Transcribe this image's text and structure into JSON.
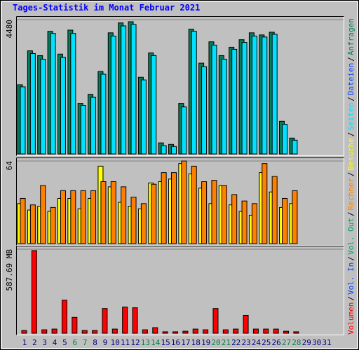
{
  "chart_data": [
    {
      "type": "bar",
      "title": "Tages-Statistik im Monat Februar 2021",
      "series": [
        {
          "name": "Anfragen",
          "color": "#00805c",
          "values": [
            2310,
            3440,
            3280,
            4090,
            3330,
            4130,
            1690,
            1990,
            2750,
            4040,
            4370,
            4410,
            2560,
            3370,
            370,
            320,
            1690,
            4160,
            3030,
            3740,
            3280,
            3560,
            3810,
            4040,
            3970,
            4060,
            1090,
            530,
            null,
            null,
            null
          ]
        },
        {
          "name": "Seiten",
          "color": "#00e0ff",
          "values": [
            2240,
            3350,
            3160,
            4020,
            3220,
            4020,
            1620,
            1890,
            2660,
            3930,
            4270,
            4320,
            2470,
            3280,
            280,
            250,
            1570,
            4090,
            2910,
            3630,
            3160,
            3490,
            3720,
            3930,
            3900,
            3990,
            990,
            460,
            null,
            null,
            null
          ]
        }
      ],
      "extra_legend": [
        {
          "name": "Dateien",
          "color": "#0040ff"
        }
      ],
      "ylim": [
        0,
        4480
      ],
      "yticks": [
        4480
      ]
    },
    {
      "type": "bar",
      "series": [
        {
          "name": "Besuche",
          "color": "#ffff00",
          "values": [
            31,
            26,
            29,
            25,
            35,
            35,
            27,
            35,
            60,
            44,
            32,
            29,
            27,
            47,
            48,
            50,
            62,
            54,
            43,
            31,
            45,
            30,
            25,
            22,
            55,
            40,
            28,
            31,
            null,
            null,
            null
          ]
        },
        {
          "name": "Rechner",
          "color": "#ff8000",
          "values": [
            35,
            30,
            45,
            28,
            41,
            41,
            41,
            41,
            48,
            48,
            44,
            36,
            31,
            46,
            55,
            55,
            64,
            60,
            48,
            49,
            45,
            38,
            33,
            31,
            62,
            52,
            35,
            41,
            null,
            null,
            null
          ]
        }
      ],
      "ylim": [
        0,
        64
      ],
      "yticks": [
        64
      ]
    },
    {
      "type": "bar",
      "categories": [
        "1",
        "2",
        "3",
        "4",
        "5",
        "6",
        "7",
        "8",
        "9",
        "10",
        "11",
        "12",
        "13",
        "14",
        "15",
        "16",
        "17",
        "18",
        "19",
        "20",
        "21",
        "22",
        "23",
        "24",
        "25",
        "26",
        "27",
        "28",
        "29",
        "30",
        "31"
      ],
      "category_colors": [
        "#000080",
        "#000080",
        "#000080",
        "#000080",
        "#000080",
        "#008040",
        "#008040",
        "#000080",
        "#000080",
        "#000080",
        "#000080",
        "#000080",
        "#008040",
        "#008040",
        "#000080",
        "#000080",
        "#000080",
        "#000080",
        "#000080",
        "#008040",
        "#008040",
        "#000080",
        "#000080",
        "#000080",
        "#000080",
        "#000080",
        "#008040",
        "#008040",
        "#000080",
        "#000080",
        "#000080"
      ],
      "series": [
        {
          "name": "Volumen",
          "color": "#ff0000",
          "values": [
            19,
            578,
            24,
            29,
            231,
            111,
            19,
            19,
            173,
            29,
            183,
            178,
            24,
            39,
            10,
            10,
            14,
            29,
            24,
            173,
            24,
            29,
            125,
            29,
            29,
            29,
            14,
            10,
            null,
            null,
            null
          ]
        }
      ],
      "extra_legend": [
        {
          "name": "Vol. In",
          "color": "#0040ff"
        },
        {
          "name": "Vol. Out",
          "color": "#00a060"
        }
      ],
      "legend_separator": "/",
      "ylim": [
        0,
        587.69
      ],
      "yticks": [
        {
          "value": 587.69,
          "label": "587.69 MB"
        }
      ]
    }
  ]
}
